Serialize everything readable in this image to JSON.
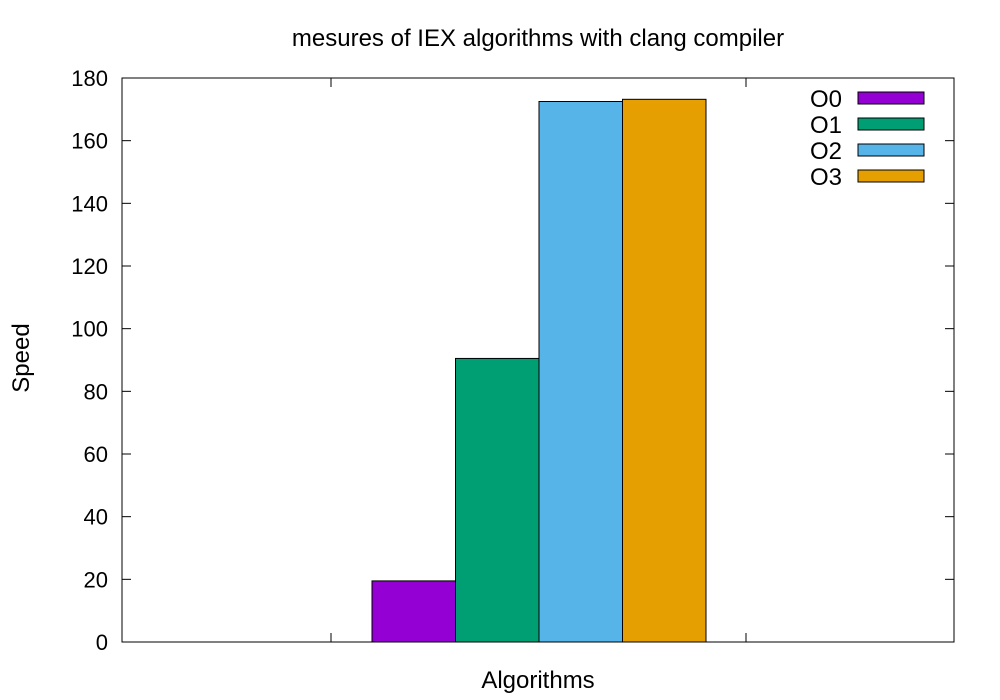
{
  "chart_data": {
    "type": "bar",
    "title": "mesures of IEX algorithms with clang compiler",
    "xlabel": "Algorithms",
    "ylabel": "Speed",
    "ylim": [
      0,
      180
    ],
    "yticks": [
      0,
      20,
      40,
      60,
      80,
      100,
      120,
      140,
      160,
      180
    ],
    "grid": false,
    "legend_position": "top-right",
    "categories": [
      ""
    ],
    "series": [
      {
        "name": "O0",
        "values": [
          19.5
        ],
        "color": "#9400d3"
      },
      {
        "name": "O1",
        "values": [
          90.5
        ],
        "color": "#009e73"
      },
      {
        "name": "O2",
        "values": [
          172.5
        ],
        "color": "#56b4e9"
      },
      {
        "name": "O3",
        "values": [
          173.2
        ],
        "color": "#e69f00"
      }
    ]
  }
}
